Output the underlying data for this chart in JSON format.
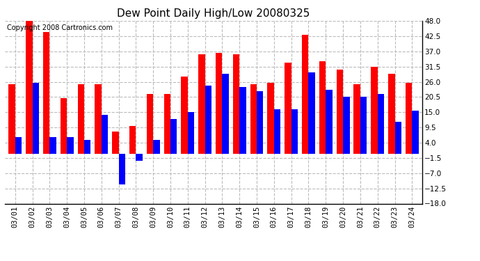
{
  "title": "Dew Point Daily High/Low 20080325",
  "copyright": "Copyright 2008 Cartronics.com",
  "dates": [
    "03/01",
    "03/02",
    "03/03",
    "03/04",
    "03/05",
    "03/06",
    "03/07",
    "03/08",
    "03/09",
    "03/10",
    "03/11",
    "03/12",
    "03/13",
    "03/14",
    "03/15",
    "03/16",
    "03/17",
    "03/18",
    "03/19",
    "03/20",
    "03/21",
    "03/22",
    "03/23",
    "03/24"
  ],
  "highs": [
    25.0,
    48.0,
    44.0,
    20.0,
    25.0,
    25.0,
    8.0,
    10.0,
    21.5,
    21.5,
    28.0,
    36.0,
    36.5,
    36.0,
    25.0,
    25.5,
    33.0,
    43.0,
    33.5,
    30.5,
    25.0,
    31.5,
    29.0,
    25.5
  ],
  "lows": [
    6.0,
    25.5,
    6.0,
    6.0,
    5.0,
    14.0,
    -11.0,
    -2.5,
    5.0,
    12.5,
    15.0,
    24.5,
    29.0,
    24.0,
    22.5,
    16.0,
    16.0,
    29.5,
    23.0,
    20.5,
    20.5,
    21.5,
    11.5,
    15.5
  ],
  "high_color": "#ff0000",
  "low_color": "#0000ff",
  "bar_width": 0.38,
  "ylim": [
    -18.0,
    48.0
  ],
  "yticks": [
    -18.0,
    -12.5,
    -7.0,
    -1.5,
    4.0,
    9.5,
    15.0,
    20.5,
    26.0,
    31.5,
    37.0,
    42.5,
    48.0
  ],
  "background_color": "#ffffff",
  "plot_bg_color": "#ffffff",
  "grid_color": "#aaaaaa",
  "title_fontsize": 11,
  "copyright_fontsize": 7,
  "tick_fontsize": 7.5
}
